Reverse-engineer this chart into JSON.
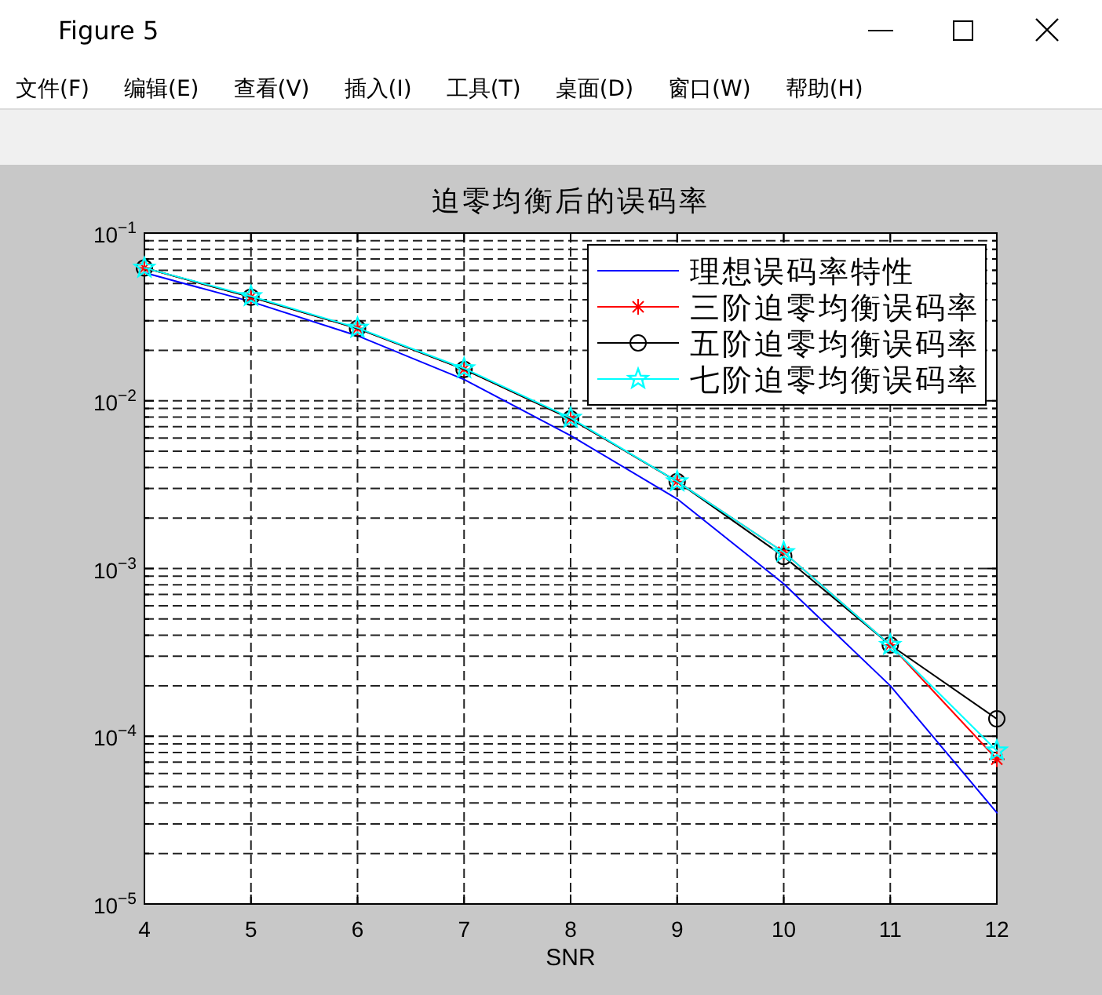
{
  "chart_data": {
    "type": "line",
    "title": "迫零均衡后的误码率",
    "xlabel": "SNR",
    "annotations": [
      "Figure 5",
      "文件(F)",
      "编辑(E)",
      "查看(V)",
      "插入(I)",
      "工具(T)",
      "桌面(D)",
      "窗口(W)",
      "帮助(H)"
    ],
    "x": [
      4,
      5,
      6,
      7,
      8,
      9,
      10,
      11,
      12
    ],
    "series": [
      {
        "name": "理想误码率特性",
        "color": "#0000ff",
        "marker": "none",
        "values": [
          0.058,
          0.039,
          0.0244,
          0.0134,
          0.0062,
          0.0026,
          0.00081,
          0.0002,
          3.5e-05
        ]
      },
      {
        "name": "三阶迫零均衡误码率",
        "color": "#ff0000",
        "marker": "cross",
        "values": [
          0.062,
          0.0415,
          0.027,
          0.0154,
          0.0078,
          0.0033,
          0.00125,
          0.00035,
          7.3e-05
        ]
      },
      {
        "name": "五阶迫零均衡误码率",
        "color": "#000000",
        "marker": "circle",
        "values": [
          0.062,
          0.0415,
          0.027,
          0.0154,
          0.0078,
          0.0033,
          0.00118,
          0.00035,
          0.000127
        ]
      },
      {
        "name": "七阶迫零均衡误码率",
        "color": "#00ffff",
        "marker": "star",
        "values": [
          0.062,
          0.042,
          0.0272,
          0.0156,
          0.0079,
          0.0033,
          0.00125,
          0.00035,
          8.2e-05
        ]
      }
    ],
    "xlim": [
      4,
      12
    ],
    "xticks": [
      4,
      5,
      6,
      7,
      8,
      9,
      10,
      11,
      12
    ],
    "ylim": [
      1e-05,
      0.1
    ],
    "yticks": [
      {
        "value": 1e-05,
        "label": "10$^{−5}$"
      },
      {
        "value": 0.0001,
        "label": "10$^{−4}$"
      },
      {
        "value": 0.001,
        "label": "10$^{−3}$"
      },
      {
        "value": 0.01,
        "label": "10$^{−2}$"
      },
      {
        "value": 0.1,
        "label": "10$^{−1}$"
      }
    ],
    "log": "y",
    "grid": true,
    "legend": "top right"
  }
}
